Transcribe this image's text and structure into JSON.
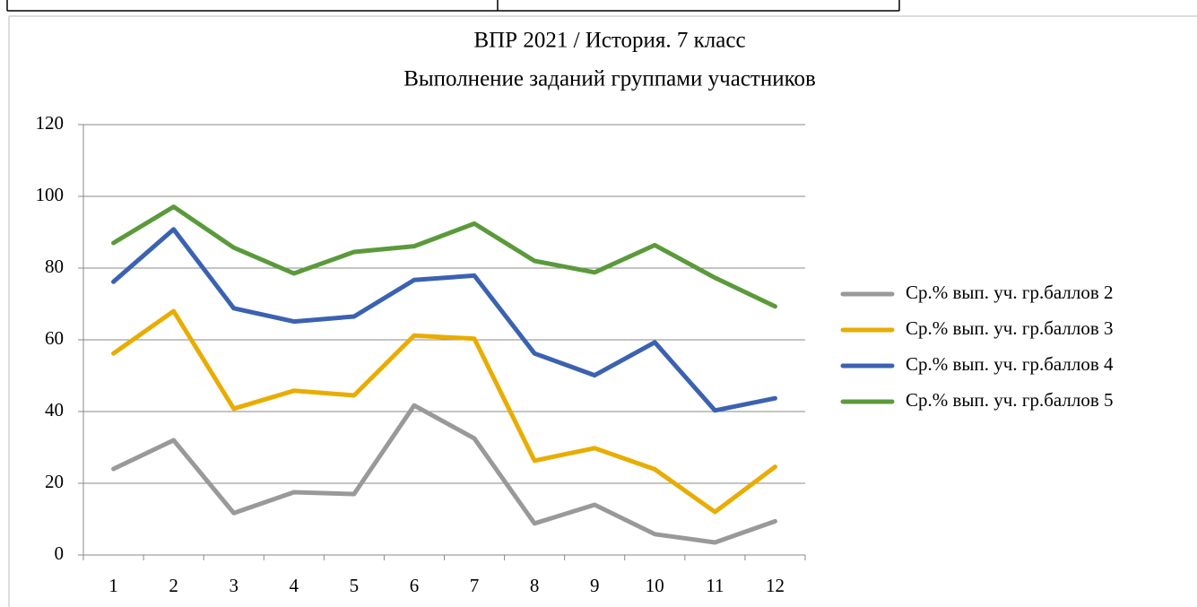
{
  "chart_data": {
    "type": "line",
    "title": "ВПР 2021 / История. 7 класс",
    "subtitle": "Выполнение заданий группами участников",
    "categories": [
      "1",
      "2",
      "3",
      "4",
      "5",
      "6",
      "7",
      "8",
      "9",
      "10",
      "11",
      "12"
    ],
    "series": [
      {
        "name": "Ср.% вып. уч. гр.баллов 2",
        "color": "#999999",
        "values": [
          24,
          32,
          11.7,
          17.5,
          17,
          41.7,
          32.5,
          8.8,
          14,
          5.8,
          3.5,
          9.4
        ]
      },
      {
        "name": "Ср.% вып. уч. гр.баллов 3",
        "color": "#e8ad00",
        "values": [
          56.2,
          68,
          40.8,
          45.8,
          44.5,
          61.2,
          60.3,
          26.3,
          29.8,
          23.9,
          12,
          24.6
        ]
      },
      {
        "name": "Ср.% вып. уч. гр.баллов 4",
        "color": "#3b62b1",
        "values": [
          76.2,
          90.8,
          68.8,
          65.1,
          66.5,
          76.7,
          77.9,
          56.2,
          50.1,
          59.3,
          40.3,
          43.7
        ]
      },
      {
        "name": "Ср.% вып. уч. гр.баллов 5",
        "color": "#5b9a3b",
        "values": [
          87,
          97.1,
          85.7,
          78.5,
          84.5,
          86.1,
          92.4,
          82,
          78.8,
          86.4,
          77.3,
          69.3
        ]
      }
    ],
    "ylim": [
      0,
      120
    ],
    "yticks": [
      0,
      20,
      40,
      60,
      80,
      100,
      120
    ],
    "grid": true,
    "legend": "right"
  }
}
